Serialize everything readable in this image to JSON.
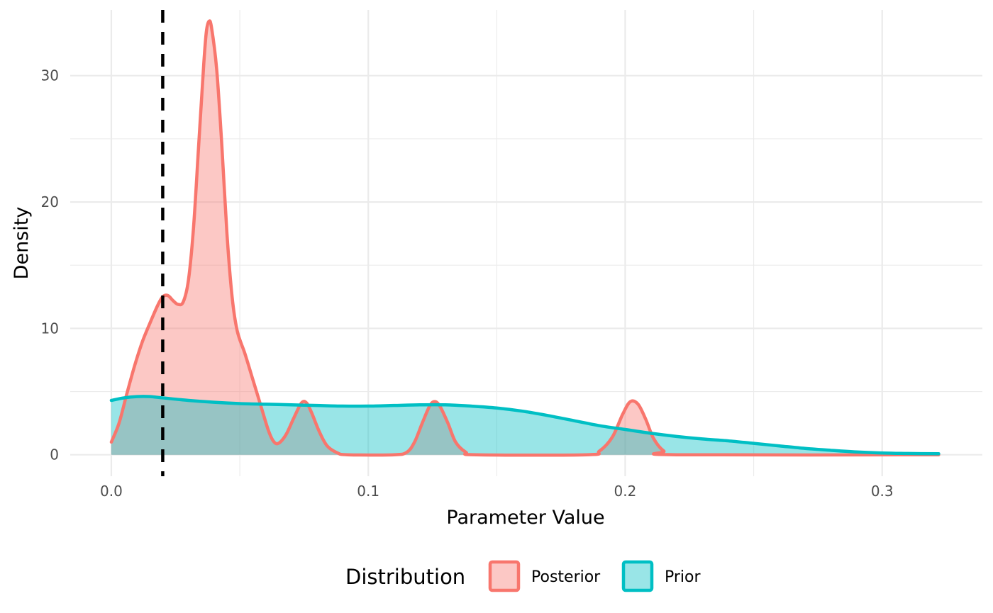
{
  "chart_data": {
    "type": "area",
    "title": "",
    "xlabel": "Parameter Value",
    "ylabel": "Density",
    "xlim": [
      -0.016,
      0.339
    ],
    "ylim": [
      -1.7,
      35.2
    ],
    "grid": true,
    "x_ticks": [
      0.0,
      0.1,
      0.2,
      0.3
    ],
    "x_tick_labels": [
      "0.0",
      "0.1",
      "0.2",
      "0.3"
    ],
    "y_ticks": [
      0,
      10,
      20,
      30
    ],
    "y_tick_labels": [
      "0",
      "10",
      "20",
      "30"
    ],
    "reference_line": {
      "x": 0.02,
      "style": "dashed",
      "color": "#000000"
    },
    "legend": {
      "title": "Distribution",
      "position": "bottom"
    },
    "series": [
      {
        "name": "Posterior",
        "color": "#F8766D",
        "fill": "#F8766D",
        "points": [
          [
            0.0,
            1.0
          ],
          [
            0.003,
            2.5
          ],
          [
            0.006,
            4.8
          ],
          [
            0.009,
            7.0
          ],
          [
            0.012,
            8.9
          ],
          [
            0.015,
            10.4
          ],
          [
            0.018,
            11.8
          ],
          [
            0.02,
            12.5
          ],
          [
            0.022,
            12.6
          ],
          [
            0.024,
            12.2
          ],
          [
            0.026,
            11.9
          ],
          [
            0.028,
            12.1
          ],
          [
            0.03,
            13.8
          ],
          [
            0.032,
            18.0
          ],
          [
            0.034,
            24.5
          ],
          [
            0.036,
            31.0
          ],
          [
            0.037,
            33.5
          ],
          [
            0.038,
            34.3
          ],
          [
            0.039,
            33.8
          ],
          [
            0.041,
            30.5
          ],
          [
            0.043,
            24.5
          ],
          [
            0.045,
            17.5
          ],
          [
            0.047,
            12.5
          ],
          [
            0.049,
            9.8
          ],
          [
            0.052,
            8.0
          ],
          [
            0.055,
            6.0
          ],
          [
            0.058,
            4.0
          ],
          [
            0.061,
            2.0
          ],
          [
            0.063,
            1.1
          ],
          [
            0.065,
            0.9
          ],
          [
            0.068,
            1.6
          ],
          [
            0.071,
            2.9
          ],
          [
            0.074,
            4.1
          ],
          [
            0.076,
            4.1
          ],
          [
            0.078,
            3.3
          ],
          [
            0.081,
            1.8
          ],
          [
            0.084,
            0.7
          ],
          [
            0.088,
            0.15
          ],
          [
            0.092,
            0.0
          ],
          [
            0.11,
            0.0
          ],
          [
            0.115,
            0.2
          ],
          [
            0.118,
            1.0
          ],
          [
            0.121,
            2.5
          ],
          [
            0.124,
            3.9
          ],
          [
            0.126,
            4.2
          ],
          [
            0.128,
            3.8
          ],
          [
            0.131,
            2.5
          ],
          [
            0.134,
            1.0
          ],
          [
            0.138,
            0.2
          ],
          [
            0.142,
            0.0
          ],
          [
            0.185,
            0.0
          ],
          [
            0.19,
            0.3
          ],
          [
            0.195,
            1.4
          ],
          [
            0.199,
            3.2
          ],
          [
            0.202,
            4.2
          ],
          [
            0.205,
            4.0
          ],
          [
            0.208,
            2.8
          ],
          [
            0.211,
            1.3
          ],
          [
            0.215,
            0.3
          ],
          [
            0.22,
            0.0
          ],
          [
            0.322,
            0.0
          ]
        ]
      },
      {
        "name": "Prior",
        "color": "#00BFC4",
        "fill": "#00BFC4",
        "points": [
          [
            0.0,
            4.3
          ],
          [
            0.005,
            4.5
          ],
          [
            0.01,
            4.6
          ],
          [
            0.015,
            4.6
          ],
          [
            0.02,
            4.5
          ],
          [
            0.03,
            4.3
          ],
          [
            0.04,
            4.15
          ],
          [
            0.05,
            4.05
          ],
          [
            0.06,
            4.0
          ],
          [
            0.07,
            3.95
          ],
          [
            0.08,
            3.9
          ],
          [
            0.09,
            3.85
          ],
          [
            0.1,
            3.85
          ],
          [
            0.11,
            3.9
          ],
          [
            0.12,
            3.95
          ],
          [
            0.13,
            3.95
          ],
          [
            0.14,
            3.85
          ],
          [
            0.15,
            3.7
          ],
          [
            0.16,
            3.45
          ],
          [
            0.17,
            3.1
          ],
          [
            0.18,
            2.7
          ],
          [
            0.19,
            2.3
          ],
          [
            0.2,
            2.0
          ],
          [
            0.21,
            1.7
          ],
          [
            0.22,
            1.45
          ],
          [
            0.23,
            1.25
          ],
          [
            0.24,
            1.1
          ],
          [
            0.25,
            0.9
          ],
          [
            0.26,
            0.7
          ],
          [
            0.27,
            0.5
          ],
          [
            0.28,
            0.35
          ],
          [
            0.29,
            0.22
          ],
          [
            0.3,
            0.14
          ],
          [
            0.31,
            0.1
          ],
          [
            0.322,
            0.08
          ]
        ]
      }
    ]
  }
}
